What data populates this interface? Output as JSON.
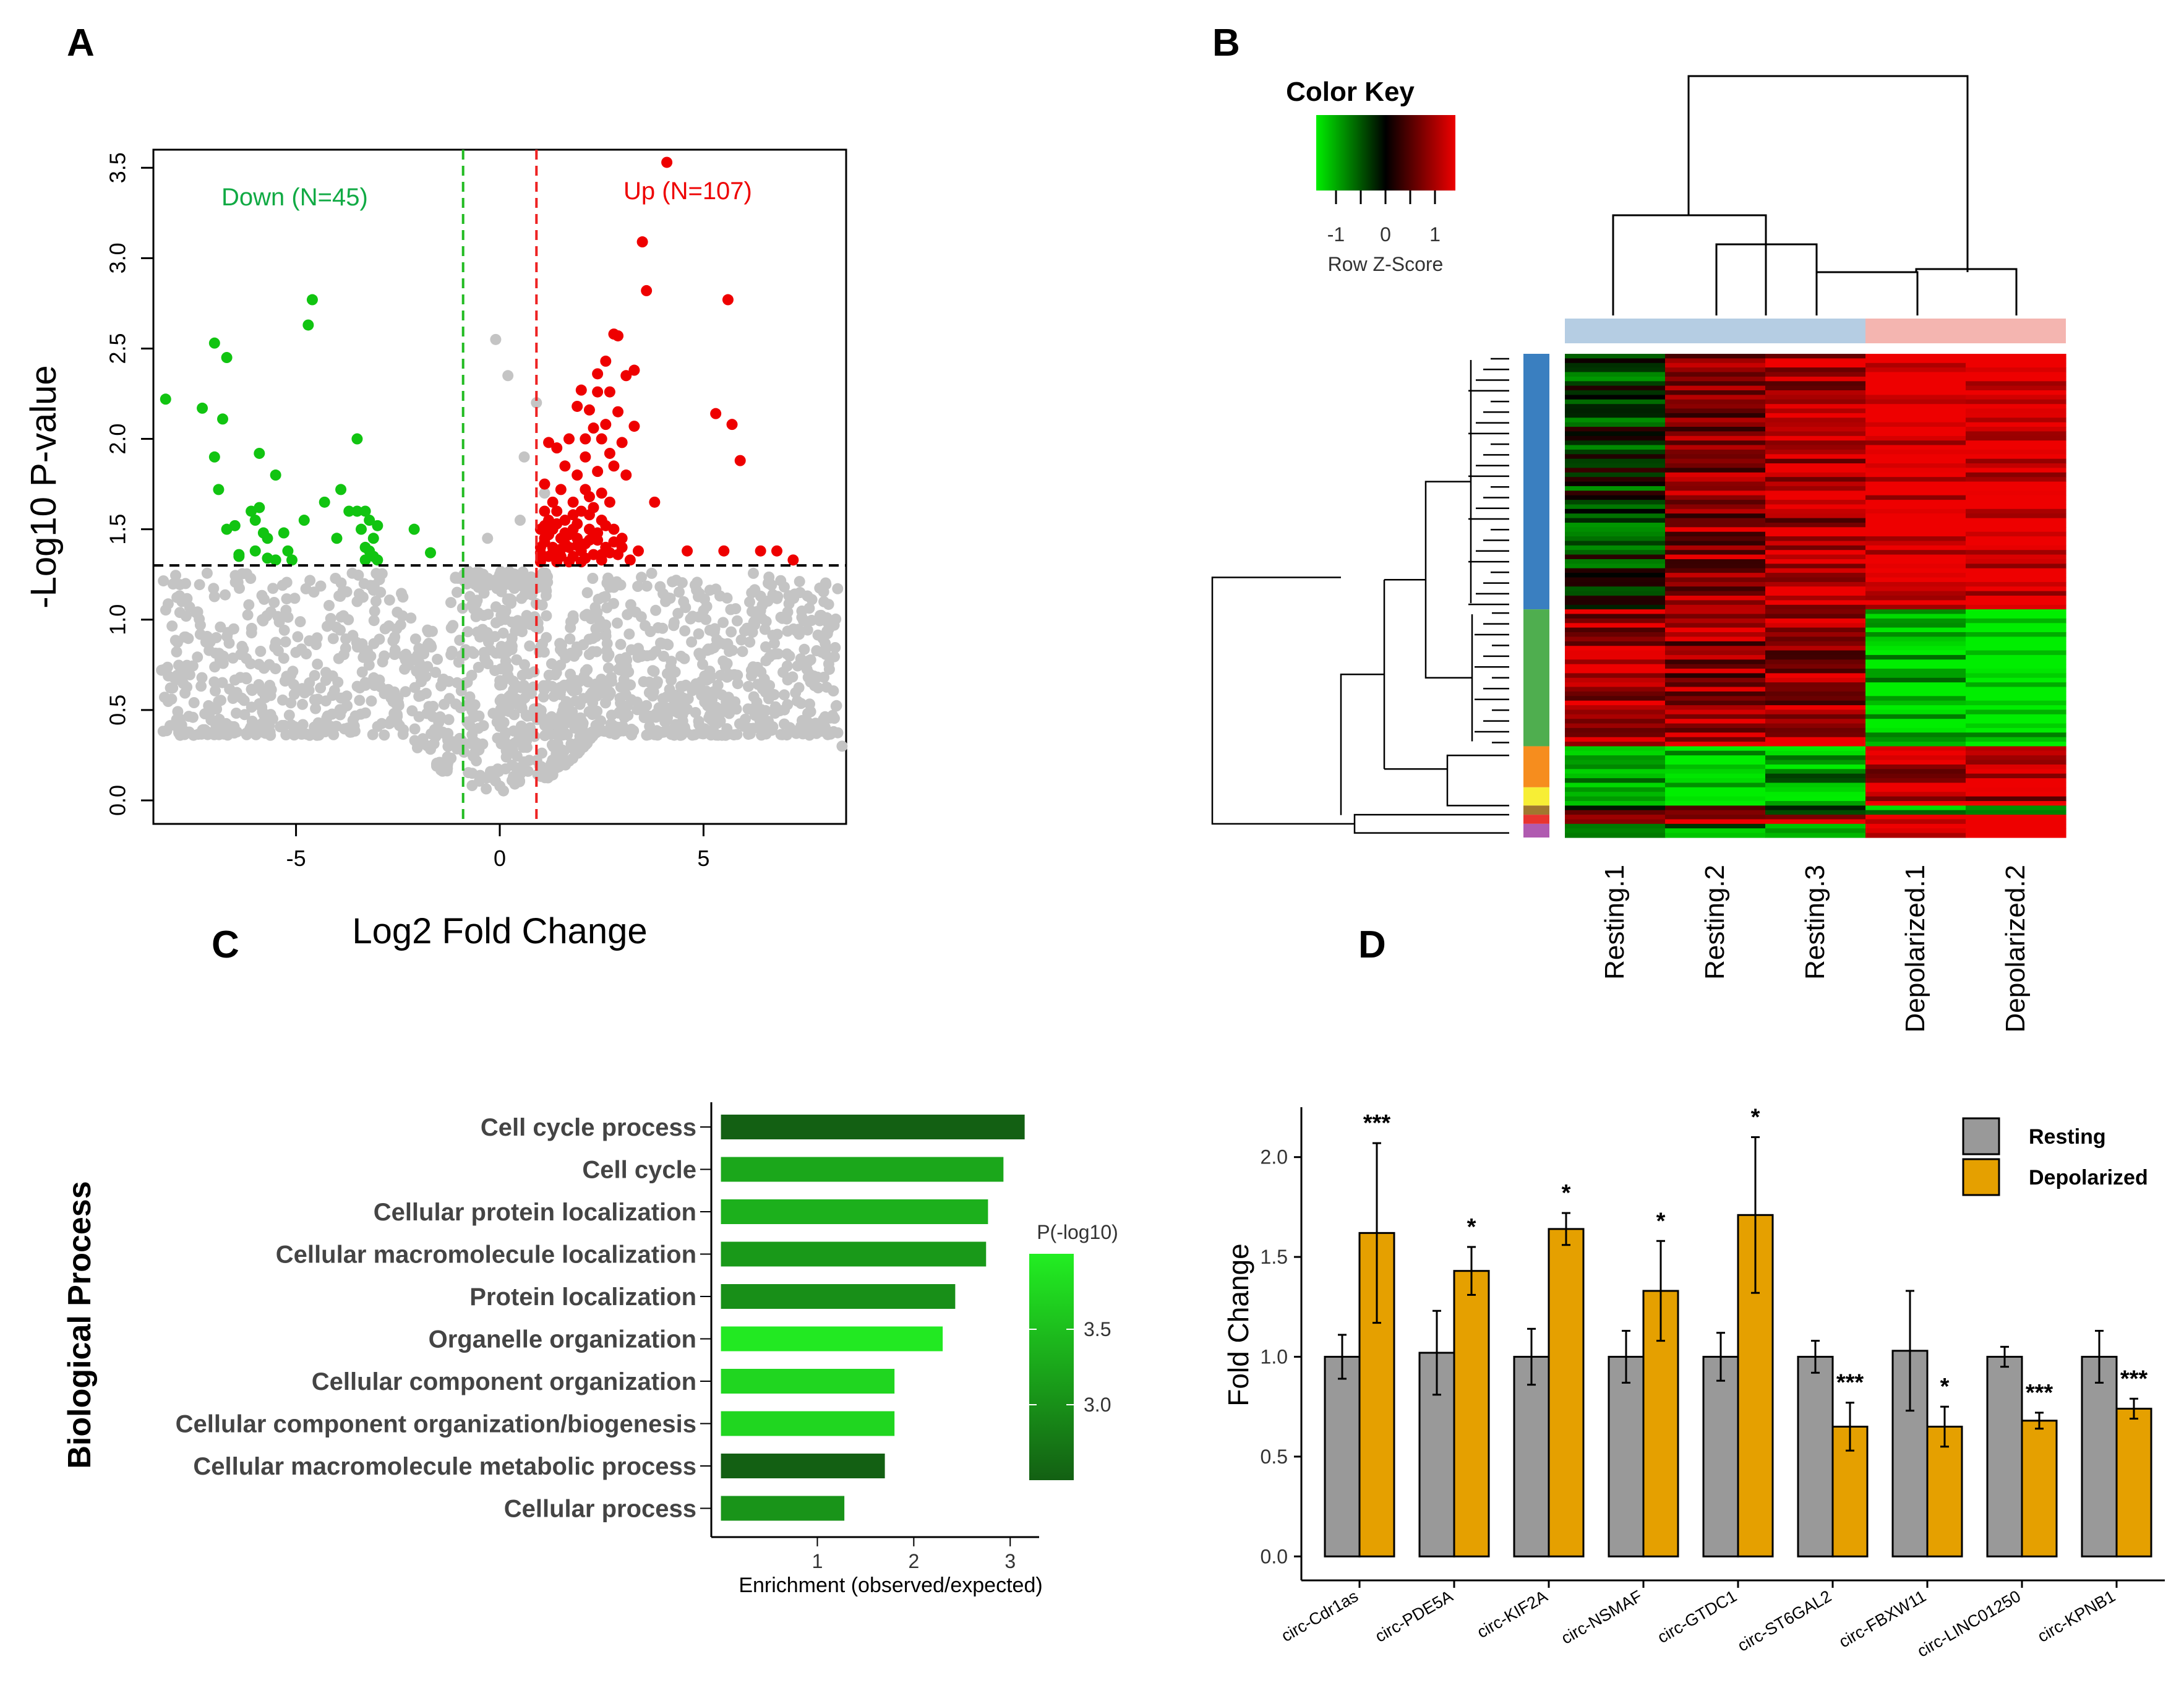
{
  "panel_labels": [
    "A",
    "B",
    "C",
    "D"
  ],
  "chart_data": [
    {
      "type": "scatter",
      "panel": "A",
      "title": "",
      "xlabel": "Log2 Fold Change",
      "ylabel": "-Log10 P-value",
      "xlim": [
        -8.5,
        8.5
      ],
      "ylim": [
        -0.13,
        3.6
      ],
      "xticks": [
        "-5",
        "0",
        "5"
      ],
      "yticks": [
        "0.0",
        "0.5",
        "1.0",
        "1.5",
        "2.0",
        "2.5",
        "3.0",
        "3.5"
      ],
      "thresholds": {
        "fc_low": -0.9,
        "fc_high": 0.9,
        "p": 1.3
      },
      "annotations": {
        "down": "Down (N=45)",
        "up": "Up (N=107)"
      },
      "colors": {
        "down": "#11c411",
        "up": "#ee0000",
        "ns": "#c4c4c4",
        "down_line": "#22bb22",
        "up_line": "#ee2222"
      },
      "down_points": [
        [
          -8.2,
          2.22
        ],
        [
          -7.0,
          2.53
        ],
        [
          -6.7,
          2.45
        ],
        [
          -7.3,
          2.17
        ],
        [
          -6.8,
          2.11
        ],
        [
          -7.0,
          1.9
        ],
        [
          -5.9,
          1.92
        ],
        [
          -5.5,
          1.8
        ],
        [
          -6.9,
          1.72
        ],
        [
          -6.7,
          1.5
        ],
        [
          -6.5,
          1.52
        ],
        [
          -6.1,
          1.6
        ],
        [
          -5.9,
          1.62
        ],
        [
          -6.0,
          1.55
        ],
        [
          -5.7,
          1.45
        ],
        [
          -5.3,
          1.48
        ],
        [
          -5.2,
          1.38
        ],
        [
          -6.0,
          1.38
        ],
        [
          -5.7,
          1.34
        ],
        [
          -5.5,
          1.33
        ],
        [
          -5.1,
          1.33
        ],
        [
          -6.4,
          1.35
        ],
        [
          -4.6,
          2.77
        ],
        [
          -4.7,
          2.63
        ],
        [
          -4.3,
          1.65
        ],
        [
          -3.9,
          1.72
        ],
        [
          -3.7,
          1.6
        ],
        [
          -3.5,
          1.6
        ],
        [
          -3.3,
          1.6
        ],
        [
          -3.2,
          1.55
        ],
        [
          -3.4,
          1.5
        ],
        [
          -3.0,
          1.52
        ],
        [
          -3.1,
          1.45
        ],
        [
          -3.3,
          1.4
        ],
        [
          -3.1,
          1.35
        ],
        [
          -3.3,
          1.33
        ],
        [
          -3.0,
          1.33
        ],
        [
          -3.2,
          1.38
        ],
        [
          -2.1,
          1.5
        ],
        [
          -3.5,
          2.0
        ],
        [
          -4.8,
          1.55
        ],
        [
          -4.0,
          1.45
        ],
        [
          -1.7,
          1.37
        ],
        [
          -5.8,
          1.48
        ],
        [
          -6.4,
          1.36
        ]
      ],
      "up_points": [
        [
          4.1,
          3.53
        ],
        [
          3.5,
          3.09
        ],
        [
          3.6,
          2.82
        ],
        [
          5.6,
          2.77
        ],
        [
          2.8,
          2.58
        ],
        [
          2.9,
          2.57
        ],
        [
          2.6,
          2.43
        ],
        [
          3.3,
          2.38
        ],
        [
          2.4,
          2.36
        ],
        [
          3.1,
          2.35
        ],
        [
          2.0,
          2.27
        ],
        [
          2.4,
          2.26
        ],
        [
          2.7,
          2.26
        ],
        [
          1.9,
          2.18
        ],
        [
          2.2,
          2.16
        ],
        [
          2.9,
          2.15
        ],
        [
          2.6,
          2.08
        ],
        [
          2.3,
          2.06
        ],
        [
          3.3,
          2.07
        ],
        [
          5.3,
          2.14
        ],
        [
          5.7,
          2.08
        ],
        [
          2.1,
          2.0
        ],
        [
          1.7,
          2.0
        ],
        [
          2.5,
          2.0
        ],
        [
          3.0,
          1.98
        ],
        [
          1.2,
          1.98
        ],
        [
          1.4,
          1.95
        ],
        [
          2.7,
          1.92
        ],
        [
          2.1,
          1.9
        ],
        [
          5.9,
          1.88
        ],
        [
          1.6,
          1.85
        ],
        [
          2.8,
          1.85
        ],
        [
          2.4,
          1.82
        ],
        [
          1.9,
          1.8
        ],
        [
          3.1,
          1.8
        ],
        [
          1.1,
          1.75
        ],
        [
          1.5,
          1.72
        ],
        [
          2.1,
          1.72
        ],
        [
          2.5,
          1.7
        ],
        [
          2.2,
          1.68
        ],
        [
          1.3,
          1.65
        ],
        [
          1.8,
          1.65
        ],
        [
          2.7,
          1.65
        ],
        [
          3.8,
          1.65
        ],
        [
          1.1,
          1.6
        ],
        [
          1.4,
          1.6
        ],
        [
          2.0,
          1.6
        ],
        [
          2.3,
          1.62
        ],
        [
          1.2,
          1.55
        ],
        [
          1.6,
          1.55
        ],
        [
          2.5,
          1.55
        ],
        [
          1.0,
          1.5
        ],
        [
          1.3,
          1.5
        ],
        [
          1.8,
          1.5
        ],
        [
          2.2,
          1.5
        ],
        [
          2.8,
          1.5
        ],
        [
          1.1,
          1.45
        ],
        [
          1.5,
          1.45
        ],
        [
          1.9,
          1.45
        ],
        [
          2.4,
          1.48
        ],
        [
          3.0,
          1.45
        ],
        [
          1.0,
          1.4
        ],
        [
          1.3,
          1.4
        ],
        [
          1.7,
          1.4
        ],
        [
          2.1,
          1.42
        ],
        [
          2.6,
          1.4
        ],
        [
          1.2,
          1.35
        ],
        [
          1.5,
          1.35
        ],
        [
          1.8,
          1.35
        ],
        [
          2.3,
          1.36
        ],
        [
          2.9,
          1.36
        ],
        [
          1.0,
          1.32
        ],
        [
          1.4,
          1.32
        ],
        [
          1.7,
          1.32
        ],
        [
          2.0,
          1.32
        ],
        [
          2.5,
          1.33
        ],
        [
          3.2,
          1.33
        ],
        [
          4.6,
          1.38
        ],
        [
          5.5,
          1.38
        ],
        [
          6.4,
          1.38
        ],
        [
          6.8,
          1.38
        ],
        [
          7.2,
          1.33
        ],
        [
          1.1,
          1.43
        ],
        [
          1.6,
          1.48
        ],
        [
          2.2,
          1.58
        ],
        [
          2.0,
          1.38
        ],
        [
          1.4,
          1.53
        ],
        [
          1.9,
          1.53
        ],
        [
          2.4,
          1.44
        ],
        [
          2.7,
          1.37
        ],
        [
          3.4,
          1.38
        ],
        [
          1.2,
          1.47
        ],
        [
          1.3,
          1.37
        ],
        [
          1.6,
          1.42
        ],
        [
          1.8,
          1.58
        ],
        [
          2.1,
          1.34
        ],
        [
          2.3,
          1.46
        ],
        [
          2.6,
          1.52
        ],
        [
          2.8,
          1.43
        ],
        [
          3.0,
          1.4
        ],
        [
          1.0,
          1.37
        ],
        [
          1.5,
          1.39
        ],
        [
          1.7,
          1.47
        ],
        [
          2.2,
          1.44
        ],
        [
          2.5,
          1.36
        ],
        [
          1.1,
          1.52
        ],
        [
          1.9,
          1.41
        ]
      ]
    },
    {
      "type": "heatmap",
      "panel": "B",
      "title": "Color Key",
      "key_ticks": [
        "-1",
        "0",
        "1"
      ],
      "key_label": "Row Z-Score",
      "columns": [
        "Resting.1",
        "Resting.2",
        "Resting.3",
        "Depolarized.1",
        "Depolarized.2"
      ],
      "column_groups": [
        {
          "name": "Resting",
          "color": "#b5cde3",
          "count": 3
        },
        {
          "name": "Depolarized",
          "color": "#f4b5b0",
          "count": 2
        }
      ],
      "row_clusters": [
        {
          "size": 56,
          "color": "#3a7fc0",
          "means": [
            -0.2,
            0.6,
            0.75,
            1.0,
            1.0
          ]
        },
        {
          "size": 30,
          "color": "#4fae4f",
          "means": [
            0.75,
            0.6,
            0.7,
            -0.85,
            -0.95
          ]
        },
        {
          "size": 9,
          "color": "#f68d1e",
          "means": [
            -0.6,
            -0.9,
            -0.7,
            0.8,
            0.9
          ]
        },
        {
          "size": 4,
          "color": "#f7ee35",
          "means": [
            -0.7,
            -0.8,
            -0.7,
            0.9,
            0.8
          ]
        },
        {
          "size": 2,
          "color": "#a0772f",
          "means": [
            0.2,
            0.3,
            0.1,
            -0.8,
            -0.6
          ]
        },
        {
          "size": 2,
          "color": "#e8342f",
          "means": [
            0.9,
            0.9,
            0.9,
            0.9,
            0.9
          ]
        },
        {
          "size": 3,
          "color": "#b05bb0",
          "means": [
            -0.5,
            -0.6,
            -0.6,
            0.8,
            0.8
          ]
        }
      ],
      "colors": {
        "low": "#00ee00",
        "mid": "#000000",
        "high": "#ee0000"
      }
    },
    {
      "type": "bar",
      "panel": "C",
      "orientation": "horizontal",
      "ylabel": "Biological Process",
      "xlabel": "Enrichment (observed/expected)",
      "xticks": [
        "1",
        "2",
        "3"
      ],
      "xlim": [
        -0.1,
        3.3
      ],
      "categories": [
        "Cell cycle process",
        "Cell cycle",
        "Cellular protein localization",
        "Cellular macromolecule localization",
        "Protein localization",
        "Organelle organization",
        "Cellular component organization",
        "Cellular component organization/biogenesis",
        "Cellular macromolecule metabolic process",
        "Cellular process"
      ],
      "values": [
        3.15,
        2.93,
        2.77,
        2.75,
        2.43,
        2.3,
        1.8,
        1.8,
        1.7,
        1.28
      ],
      "color_values": [
        2.4,
        3.25,
        3.35,
        3.1,
        3.0,
        3.95,
        3.75,
        3.75,
        2.5,
        3.05
      ],
      "legend_title": "P(-log10)",
      "legend_ticks": [
        "3.5",
        "3.0"
      ],
      "legend_range": [
        2.5,
        4.0
      ]
    },
    {
      "type": "bar",
      "panel": "D",
      "ylabel": "Fold Change",
      "ylim": [
        -0.12,
        2.25
      ],
      "yticks": [
        "0.0",
        "0.5",
        "1.0",
        "1.5",
        "2.0"
      ],
      "categories": [
        "circ-Cdr1as",
        "circ-PDE5A",
        "circ-KIF2A",
        "circ-NSMAF",
        "circ-GTDC1",
        "circ-ST6GAL2",
        "circ-FBXW11",
        "circ-LINC01250",
        "circ-KPNB1"
      ],
      "series": [
        {
          "name": "Resting",
          "color": "#999999",
          "values": [
            1.0,
            1.02,
            1.0,
            1.0,
            1.0,
            1.0,
            1.03,
            1.0,
            1.0
          ],
          "errors": [
            0.11,
            0.21,
            0.14,
            0.13,
            0.12,
            0.08,
            0.3,
            0.05,
            0.13
          ]
        },
        {
          "name": "Depolarized",
          "color": "#e5a000",
          "values": [
            1.62,
            1.43,
            1.64,
            1.33,
            1.71,
            0.65,
            0.65,
            0.68,
            0.74
          ],
          "errors": [
            0.45,
            0.12,
            0.08,
            0.25,
            0.39,
            0.12,
            0.1,
            0.04,
            0.05
          ]
        }
      ],
      "significance": [
        "***",
        "*",
        "*",
        "*",
        "*",
        "***",
        "*",
        "***",
        "***"
      ],
      "legend": [
        "Resting",
        "Depolarized"
      ]
    }
  ]
}
